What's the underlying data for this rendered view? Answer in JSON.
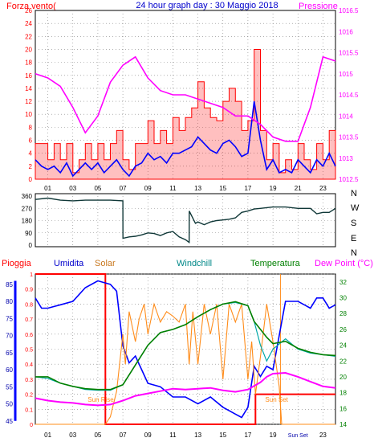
{
  "header": {
    "title": "24 hour graph day : 30 Maggio 2018",
    "left_label": "Forza vento(",
    "right_label": "Pressione"
  },
  "colors": {
    "wind": "#ff0000",
    "gust_fill": "#ff0000",
    "wind_avg": "#0000ff",
    "pressure": "#ff00ff",
    "direction": "#103838",
    "rain": "#ff0000",
    "humidity": "#0000ff",
    "solar": "#ff8c1a",
    "windchill": "#00a8a8",
    "temperature": "#008000",
    "dewpoint": "#ff00ff",
    "title": "#0000cc",
    "grid": "#808080"
  },
  "chart_data": [
    {
      "type": "line",
      "title": "24 hour graph day : 30 Maggio 2018",
      "x_ticks": [
        "01",
        "03",
        "05",
        "07",
        "09",
        "11",
        "13",
        "15",
        "17",
        "19",
        "21",
        "23"
      ],
      "xlim": [
        0,
        24
      ],
      "y_left": {
        "label": "Forza vento(",
        "ticks": [
          "0",
          "2",
          "4",
          "6",
          "8",
          "10",
          "12",
          "14",
          "16",
          "18",
          "20",
          "22",
          "24",
          "26"
        ],
        "ylim": [
          0,
          26
        ]
      },
      "y_right": {
        "label": "Pressione",
        "ticks": [
          "1012.5",
          "1013",
          "1013.5",
          "1014",
          "1014.5",
          "1015",
          "1015.5",
          "1016",
          "1016.5"
        ],
        "ylim": [
          1012.5,
          1016.5
        ]
      },
      "series": [
        {
          "axis": "left",
          "style": "gust",
          "x": [
            0,
            0.5,
            1,
            1.5,
            2,
            2.5,
            3,
            3.5,
            4,
            4.5,
            5,
            5.5,
            6,
            6.5,
            7,
            7.5,
            8,
            8.5,
            9,
            9.5,
            10,
            10.5,
            11,
            11.5,
            12,
            12.5,
            13,
            13.5,
            14,
            14.5,
            15,
            15.5,
            16,
            16.5,
            17,
            17.5,
            18,
            18.5,
            19,
            19.5,
            20,
            20.5,
            21,
            21.5,
            22,
            22.5,
            23,
            23.5,
            24
          ],
          "values": [
            5.5,
            5.5,
            3,
            5.5,
            3,
            5.5,
            1,
            3,
            5.5,
            3,
            5.5,
            3,
            5.5,
            7.5,
            3,
            1.5,
            5.5,
            5.5,
            9,
            5.5,
            7.5,
            5.5,
            9.5,
            7.5,
            9.5,
            11,
            15,
            11,
            9.5,
            9,
            12,
            14,
            12,
            7.5,
            9,
            20,
            7.5,
            3,
            5.5,
            1,
            3,
            1.5,
            5.5,
            3,
            1.5,
            5.5,
            3,
            7.5,
            3
          ]
        },
        {
          "axis": "left",
          "style": "avg",
          "x": [
            0,
            0.5,
            1,
            1.5,
            2,
            2.5,
            3,
            3.5,
            4,
            4.5,
            5,
            5.5,
            6,
            6.5,
            7,
            7.5,
            8,
            8.5,
            9,
            9.5,
            10,
            10.5,
            11,
            11.5,
            12,
            12.5,
            13,
            13.5,
            14,
            14.5,
            15,
            15.5,
            16,
            16.5,
            17,
            17.5,
            18,
            18.5,
            19,
            19.5,
            20,
            20.5,
            21,
            21.5,
            22,
            22.5,
            23,
            23.5,
            24
          ],
          "values": [
            3,
            2,
            1.5,
            2,
            1,
            2.5,
            0.5,
            1.5,
            2.5,
            1.5,
            2.5,
            1,
            2,
            3,
            1.5,
            0.5,
            2,
            2.5,
            4,
            3,
            3.5,
            2.5,
            4,
            4,
            4.5,
            5,
            6.5,
            5.5,
            4.5,
            4,
            5.5,
            6,
            5,
            3.5,
            4,
            12,
            6,
            1.5,
            3,
            1,
            1.5,
            1,
            3,
            2,
            1,
            3,
            2,
            4,
            2
          ]
        },
        {
          "axis": "right",
          "style": "pressure",
          "x": [
            0,
            1,
            2,
            3,
            4,
            5,
            6,
            7,
            8,
            9,
            10,
            11,
            12,
            13,
            14,
            15,
            16,
            17,
            18,
            19,
            20,
            21,
            22,
            23,
            24
          ],
          "values": [
            1015.0,
            1014.9,
            1014.7,
            1014.2,
            1013.6,
            1014.0,
            1014.8,
            1015.2,
            1015.4,
            1014.9,
            1014.6,
            1014.5,
            1014.5,
            1014.4,
            1014.3,
            1014.2,
            1014.0,
            1014.0,
            1013.8,
            1013.5,
            1013.4,
            1013.4,
            1014.2,
            1015.4,
            1015.3
          ]
        }
      ]
    },
    {
      "type": "line",
      "x_ticks": [
        "01",
        "03",
        "05",
        "07",
        "09",
        "11",
        "13",
        "15",
        "17",
        "19",
        "21",
        "23"
      ],
      "xlim": [
        0,
        24
      ],
      "y_left": {
        "ticks": [
          "0",
          "90",
          "180",
          "270",
          "360"
        ],
        "ylim": [
          0,
          360
        ]
      },
      "y_right": {
        "ticks": [
          "N",
          "W",
          "S",
          "E",
          "N"
        ]
      },
      "series": [
        {
          "style": "direction",
          "x": [
            0,
            1,
            2,
            3,
            4,
            5,
            6,
            7,
            7.01,
            7.5,
            8,
            8.5,
            9,
            9.5,
            10,
            10.5,
            11,
            11.5,
            12,
            12.3,
            12.31,
            12.8,
            13,
            13.5,
            14,
            14.5,
            15,
            15.5,
            16,
            16.5,
            17,
            17.5,
            18,
            19,
            20,
            21,
            22,
            22.5,
            23,
            23.5,
            24
          ],
          "values": [
            335,
            345,
            330,
            325,
            330,
            330,
            330,
            325,
            50,
            60,
            65,
            75,
            90,
            85,
            70,
            90,
            100,
            60,
            40,
            20,
            250,
            160,
            170,
            150,
            170,
            180,
            185,
            190,
            200,
            240,
            250,
            265,
            270,
            280,
            280,
            270,
            270,
            230,
            240,
            240,
            270
          ]
        }
      ]
    },
    {
      "type": "line",
      "x_ticks": [
        "01",
        "03",
        "05",
        "07",
        "09",
        "11",
        "13",
        "15",
        "17",
        "19",
        "Sun Set",
        "23"
      ],
      "xlim": [
        0,
        24
      ],
      "labels": {
        "rain": "Pioggia",
        "humidity": "Umidita",
        "solar": "Solar",
        "windchill": "Windchill",
        "temperature": "Temperatura",
        "dewpoint": "Dew Point (°C)",
        "sunrise": "Sun Rise",
        "sunset": "Sun Set"
      },
      "y_rain": {
        "ticks": [
          "0",
          "0.1",
          "0.2",
          "0.3",
          "0.4",
          "0.5",
          "0.6",
          "0.7",
          "0.8",
          "0.9",
          "1"
        ],
        "ylim": [
          0,
          1
        ]
      },
      "y_humidity": {
        "ticks": [
          "45",
          "50",
          "55",
          "60",
          "65",
          "70",
          "75",
          "80",
          "85"
        ],
        "ylim": [
          44,
          88
        ]
      },
      "y_temp": {
        "ticks": [
          "14",
          "16",
          "18",
          "20",
          "22",
          "24",
          "26",
          "28",
          "30",
          "32"
        ],
        "ylim": [
          14,
          33
        ]
      },
      "sun_rise_hour": 5.6,
      "sun_set_hour": 19.6,
      "series": [
        {
          "style": "daylight",
          "x": [
            0,
            5.6,
            5.6,
            17.6,
            17.6,
            24
          ],
          "values": [
            1,
            1,
            0,
            0,
            0.2,
            0.2
          ]
        },
        {
          "style": "humidity",
          "x": [
            0,
            0.5,
            1,
            2,
            3,
            4,
            5,
            6,
            6.5,
            7,
            7.5,
            8,
            8.5,
            9,
            10,
            11,
            12,
            13,
            14,
            15,
            16,
            16.5,
            17,
            17.5,
            18,
            18.5,
            19,
            20,
            21,
            22,
            22.5,
            23,
            23.5,
            24
          ],
          "values": [
            81,
            78,
            78,
            79,
            80,
            84,
            86,
            85,
            83,
            67,
            62,
            64,
            60,
            56,
            55,
            52,
            52,
            50,
            52,
            49,
            47,
            46,
            49,
            61,
            58,
            61,
            60,
            80,
            80,
            78,
            81,
            81,
            78,
            79
          ]
        },
        {
          "style": "solar",
          "x": [
            0,
            5.6,
            6,
            6.5,
            7,
            7.2,
            7.5,
            8,
            8.3,
            8.7,
            9,
            9.5,
            10,
            10.5,
            11,
            11.5,
            12,
            12.3,
            12.6,
            13,
            13.5,
            14,
            14.5,
            15,
            15.5,
            16,
            16.5,
            17,
            17.3,
            17.6,
            18,
            18.5,
            19,
            19.5,
            19.7,
            24
          ],
          "values": [
            0,
            0,
            0.05,
            0.22,
            0.6,
            0.4,
            0.75,
            0.55,
            0.7,
            0.8,
            0.6,
            0.8,
            0.68,
            0.75,
            0.72,
            0.68,
            0.8,
            0.4,
            0.75,
            0.4,
            0.8,
            0.6,
            0.8,
            0.3,
            0.8,
            0.68,
            0.8,
            0.3,
            0.55,
            0.2,
            0.45,
            0.8,
            0.55,
            0.25,
            0,
            0
          ]
        },
        {
          "style": "windchill",
          "x": [
            0,
            1,
            2,
            3,
            4,
            5,
            6,
            7,
            8,
            9,
            10,
            11,
            12,
            13,
            14,
            15,
            16,
            17,
            17.5,
            18,
            18.5,
            19,
            20,
            21,
            22,
            23,
            24
          ],
          "values": [
            20,
            19.8,
            19.2,
            18.8,
            18.4,
            18.3,
            18.3,
            19,
            21.5,
            24,
            25.6,
            26,
            26.6,
            27.6,
            28.5,
            29.2,
            29.4,
            29,
            27,
            24,
            22,
            23.5,
            24.8,
            23.5,
            23,
            22.8,
            22.6
          ]
        },
        {
          "style": "temperature",
          "x": [
            0,
            1,
            2,
            3,
            4,
            5,
            6,
            7,
            8,
            9,
            10,
            11,
            12,
            13,
            14,
            15,
            16,
            17,
            17.5,
            18,
            18.5,
            19,
            20,
            21,
            22,
            23,
            24
          ],
          "values": [
            20,
            20,
            19.2,
            18.8,
            18.5,
            18.4,
            18.4,
            19,
            21.5,
            24,
            25.6,
            26,
            26.6,
            27.6,
            28.5,
            29.2,
            29.5,
            29,
            27,
            26,
            25,
            24.2,
            24.5,
            23.6,
            23.1,
            22.8,
            22.7
          ]
        },
        {
          "style": "dewpoint",
          "x": [
            0,
            1,
            2,
            3,
            4,
            5,
            6,
            7,
            8,
            9,
            10,
            11,
            12,
            13,
            14,
            15,
            16,
            17,
            18,
            18.5,
            19,
            20,
            21,
            22,
            23,
            24
          ],
          "values": [
            17.3,
            17,
            16.8,
            16.7,
            16.5,
            16.4,
            16.5,
            17,
            17.6,
            17.9,
            18.2,
            18.5,
            18.4,
            18.5,
            18.6,
            18.3,
            18.1,
            18.4,
            19.3,
            20,
            20.4,
            20.5,
            20,
            19.4,
            18.8,
            18.6
          ]
        }
      ]
    }
  ]
}
